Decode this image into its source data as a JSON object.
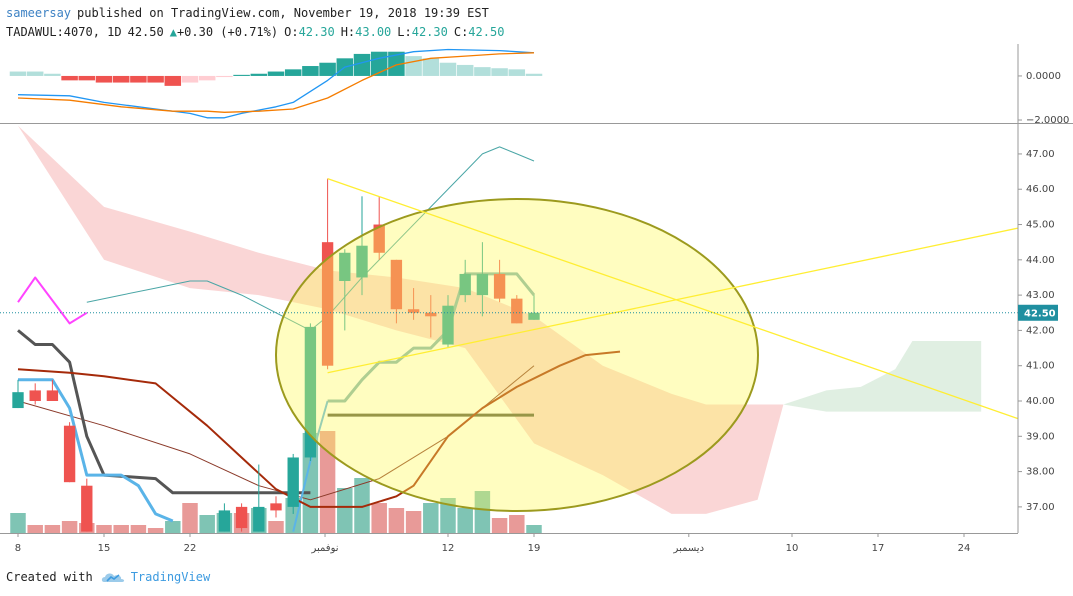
{
  "header": {
    "author": "sameersay",
    "published": "published on TradingView.com, November 19, 2018 19:39 EST",
    "symbol": "TADAWUL:4070, 1D",
    "price": "42.50",
    "arrow": "▲",
    "change": "+0.30 (+0.71%)",
    "ohlc": [
      {
        "key": "O:",
        "value": "42.30"
      },
      {
        "key": "H:",
        "value": "43.00"
      },
      {
        "key": "L:",
        "value": "42.30"
      },
      {
        "key": "C:",
        "value": "42.50"
      }
    ]
  },
  "footer": {
    "text": "Created with",
    "brand": "TradingView"
  },
  "chart_data": [
    {
      "type": "bar",
      "xlim": [
        -1.0465,
        58.14
      ],
      "ylim": [
        -2.09,
        1.45
      ],
      "yticks": [
        {
          "value": 0,
          "label": "0.0000"
        },
        {
          "value": -2,
          "label": "−2.0000"
        }
      ],
      "x": [
        0,
        1,
        2,
        3,
        4,
        5,
        6,
        7,
        8,
        9,
        10,
        11,
        12,
        13,
        14,
        15,
        16,
        17,
        18,
        19,
        20,
        21,
        22,
        23,
        24,
        25,
        26,
        27,
        28,
        29,
        30
      ],
      "values": [
        0.2,
        0.2,
        0.1,
        -0.2,
        -0.2,
        -0.3,
        -0.3,
        -0.3,
        -0.3,
        -0.45,
        -0.3,
        -0.2,
        -0.05,
        0.05,
        0.1,
        0.2,
        0.3,
        0.45,
        0.6,
        0.8,
        1.0,
        1.1,
        1.1,
        0.9,
        0.8,
        0.6,
        0.5,
        0.4,
        0.35,
        0.3,
        0.1
      ],
      "colors": [
        "#b2dfdb",
        "#b2dfdb",
        "#b2dfdb",
        "#ef5350",
        "#ef5350",
        "#ef5350",
        "#ef5350",
        "#ef5350",
        "#ef5350",
        "#ef5350",
        "#ffcdd2",
        "#ffcdd2",
        "#ffcdd2",
        "#26a69a",
        "#26a69a",
        "#26a69a",
        "#26a69a",
        "#26a69a",
        "#26a69a",
        "#26a69a",
        "#26a69a",
        "#26a69a",
        "#26a69a",
        "#b2dfdb",
        "#b2dfdb",
        "#b2dfdb",
        "#b2dfdb",
        "#b2dfdb",
        "#b2dfdb",
        "#b2dfdb",
        "#b2dfdb"
      ],
      "lines": [
        {
          "color": "#2196f3",
          "x": [
            0,
            3,
            5,
            8,
            10,
            11,
            12,
            13,
            15,
            16,
            17,
            18,
            19,
            21,
            23,
            25,
            28,
            30
          ],
          "values": [
            -0.85,
            -0.9,
            -1.2,
            -1.5,
            -1.7,
            -1.9,
            -1.9,
            -1.7,
            -1.4,
            -1.2,
            -0.7,
            -0.2,
            0.4,
            0.8,
            1.1,
            1.2,
            1.15,
            1.05
          ]
        },
        {
          "color": "#f57c00",
          "x": [
            0,
            3,
            6,
            9,
            11,
            12,
            14,
            16,
            18,
            20,
            22,
            24,
            26,
            28,
            30
          ],
          "values": [
            -1.0,
            -1.1,
            -1.4,
            -1.6,
            -1.6,
            -1.65,
            -1.6,
            -1.5,
            -1.0,
            -0.2,
            0.5,
            0.8,
            0.9,
            1.0,
            1.05
          ]
        }
      ]
    },
    {
      "type": "candlestick",
      "xlim": [
        -1.0465,
        58.14
      ],
      "ylim": [
        36.26,
        47.82
      ],
      "yticks": [
        {
          "value": 37,
          "label": "37.00"
        },
        {
          "value": 38,
          "label": "38.00"
        },
        {
          "value": 39,
          "label": "39.00"
        },
        {
          "value": 40,
          "label": "40.00"
        },
        {
          "value": 41,
          "label": "41.00"
        },
        {
          "value": 42,
          "label": "42.00"
        },
        {
          "value": 43,
          "label": "43.00"
        },
        {
          "value": 44,
          "label": "44.00"
        },
        {
          "value": 45,
          "label": "45.00"
        },
        {
          "value": 46,
          "label": "46.00"
        },
        {
          "value": 47,
          "label": "47.00"
        }
      ],
      "xticks": [
        {
          "value": 0,
          "label": "8"
        },
        {
          "value": 5,
          "label": "15"
        },
        {
          "value": 10,
          "label": "22"
        },
        {
          "value": 17.85,
          "label": "نوفمبر"
        },
        {
          "value": 25,
          "label": "12"
        },
        {
          "value": 30,
          "label": "19"
        },
        {
          "value": 39,
          "label": "ديسمبر"
        },
        {
          "value": 45,
          "label": "10"
        },
        {
          "value": 50,
          "label": "17"
        },
        {
          "value": 55,
          "label": "24"
        }
      ],
      "up_color": "#26a69a",
      "down_color": "#ef5350",
      "x": [
        0,
        1,
        2,
        3,
        4,
        12,
        13,
        14,
        15,
        16,
        17,
        18,
        19,
        20,
        21,
        22,
        23,
        24,
        25,
        26,
        27,
        28,
        29,
        30
      ],
      "open": [
        39.8,
        40.3,
        40.3,
        39.3,
        37.6,
        36.3,
        37.0,
        36.3,
        37.1,
        37.0,
        38.4,
        44.5,
        43.4,
        43.5,
        45.0,
        44.0,
        42.6,
        42.5,
        41.6,
        43.0,
        43.0,
        43.6,
        42.9,
        42.3
      ],
      "high": [
        40.6,
        40.5,
        40.6,
        39.4,
        37.8,
        37.1,
        37.1,
        38.2,
        37.3,
        38.5,
        42.2,
        46.3,
        44.3,
        45.8,
        45.8,
        44.0,
        43.2,
        43.0,
        43.0,
        44.0,
        44.5,
        44.0,
        43.0,
        43.0
      ],
      "low": [
        39.8,
        39.9,
        40.0,
        37.7,
        36.3,
        36.3,
        36.3,
        36.3,
        36.7,
        36.8,
        38.3,
        40.9,
        42.0,
        43.0,
        44.0,
        42.2,
        42.3,
        41.8,
        41.5,
        42.8,
        42.4,
        42.8,
        42.2,
        42.3
      ],
      "close": [
        40.25,
        40.0,
        40.0,
        37.7,
        36.3,
        36.9,
        36.4,
        37.0,
        36.9,
        38.4,
        42.1,
        41.0,
        44.2,
        44.4,
        44.2,
        42.6,
        42.5,
        42.4,
        42.7,
        43.6,
        43.6,
        42.9,
        42.2,
        42.5
      ],
      "last_price": {
        "value": 42.5,
        "label": "42.50"
      },
      "volume": {
        "vlim": [
          0,
          408
        ],
        "x": [
          0,
          1,
          2,
          3,
          4,
          5,
          6,
          7,
          8,
          9,
          10,
          11,
          12,
          13,
          14,
          15,
          16,
          17,
          18,
          19,
          20,
          21,
          22,
          23,
          24,
          25,
          26,
          27,
          28,
          29,
          30
        ],
        "values": [
          20,
          8,
          8,
          12,
          10,
          8,
          8,
          8,
          5,
          12,
          30,
          18,
          20,
          20,
          25,
          12,
          35,
          100,
          102,
          45,
          55,
          30,
          25,
          22,
          30,
          35,
          25,
          42,
          15,
          18,
          8
        ],
        "colors": [
          "#7fc4b4",
          "#e89a98",
          "#e89a98",
          "#e89a98",
          "#e89a98",
          "#e89a98",
          "#e89a98",
          "#e89a98",
          "#e89a98",
          "#7fc4b4",
          "#e89a98",
          "#7fc4b4",
          "#7fc4b4",
          "#e89a98",
          "#7fc4b4",
          "#e89a98",
          "#7fc4b4",
          "#7fc4b4",
          "#e89a98",
          "#7fc4b4",
          "#7fc4b4",
          "#e89a98",
          "#e89a98",
          "#e89a98",
          "#7fc4b4",
          "#7fc4b4",
          "#7fc4b4",
          "#7fc4b4",
          "#e89a98",
          "#e89a98",
          "#7fc4b4"
        ]
      },
      "clouds": [
        {
          "color": "#f8c8c8",
          "x": [
            0,
            5,
            10,
            14,
            18,
            22,
            26,
            30,
            34,
            38,
            40,
            43,
            44.5
          ],
          "upper": [
            47.8,
            45.5,
            44.8,
            44.2,
            43.7,
            43.5,
            43.2,
            42.4,
            41.0,
            40.2,
            39.9,
            39.9,
            39.9
          ],
          "lower": [
            47.8,
            44.0,
            43.2,
            43.0,
            42.6,
            42.0,
            41.5,
            38.8,
            37.9,
            36.8,
            36.8,
            37.2,
            39.9
          ]
        },
        {
          "color": "#d5ead8",
          "x": [
            44.5,
            47,
            49,
            51,
            52,
            56
          ],
          "upper": [
            39.9,
            40.3,
            40.4,
            40.9,
            41.7,
            41.7
          ],
          "lower": [
            39.9,
            39.7,
            39.7,
            39.7,
            39.7,
            39.7
          ]
        }
      ],
      "lines": [
        {
          "color": "#4aa6a6",
          "width": 1,
          "x": [
            4,
            6,
            8,
            10,
            11,
            13,
            15,
            17,
            18,
            20,
            22,
            24,
            26,
            27,
            28,
            29,
            30
          ],
          "values": [
            42.8,
            43.0,
            43.2,
            43.4,
            43.4,
            43.0,
            42.5,
            42.0,
            42.4,
            43.5,
            44.5,
            45.5,
            46.5,
            47.0,
            47.2,
            47.0,
            46.8
          ]
        },
        {
          "color": "#8b3a2a",
          "width": 1,
          "x": [
            0,
            5,
            10,
            14,
            17,
            21,
            25,
            30
          ],
          "values": [
            40.0,
            39.3,
            38.5,
            37.6,
            37.2,
            37.8,
            39.0,
            41.0
          ]
        },
        {
          "color": "#555555",
          "width": 3,
          "x": [
            0,
            1,
            2,
            3,
            4,
            5,
            8,
            9,
            10,
            16,
            17
          ],
          "values": [
            42.0,
            41.6,
            41.6,
            41.1,
            39.0,
            37.9,
            37.8,
            37.4,
            37.4,
            37.4,
            37.4
          ]
        },
        {
          "color": "#5a5a3c",
          "width": 3,
          "x": [
            18,
            30
          ],
          "values": [
            39.6,
            39.6
          ]
        },
        {
          "color": "#5ab4e8",
          "width": 3,
          "x": [
            0,
            2,
            3,
            4,
            6,
            7,
            8,
            9
          ],
          "values": [
            40.6,
            40.6,
            39.8,
            37.9,
            37.9,
            37.6,
            36.8,
            36.6
          ]
        },
        {
          "color": "#5ab4e8",
          "width": 2,
          "x": [
            16,
            17,
            18
          ],
          "values": [
            36.3,
            38.3,
            40.0
          ]
        },
        {
          "color": "#7fb3b3",
          "width": 3,
          "x": [
            18,
            19,
            20,
            21,
            22,
            23,
            24,
            25,
            26,
            27,
            28,
            29,
            30
          ],
          "values": [
            40.0,
            40.0,
            40.6,
            41.1,
            41.1,
            41.5,
            41.5,
            42.0,
            43.6,
            43.6,
            43.6,
            43.6,
            43.0
          ]
        },
        {
          "color": "#a52a0a",
          "width": 2,
          "x": [
            0,
            3,
            5,
            8,
            9,
            11,
            13,
            15,
            17,
            20,
            22,
            23,
            25,
            27,
            29,
            31.5,
            33,
            35
          ],
          "values": [
            40.9,
            40.8,
            40.7,
            40.5,
            40.1,
            39.3,
            38.4,
            37.5,
            37.0,
            37.0,
            37.3,
            37.6,
            39.0,
            39.8,
            40.4,
            41.0,
            41.3,
            41.4
          ]
        },
        {
          "color": "#ff44ff",
          "width": 2,
          "x": [
            0,
            1,
            3,
            4
          ],
          "values": [
            42.8,
            43.5,
            42.2,
            42.5
          ]
        }
      ],
      "trendlines": [
        {
          "color": "#ffee33",
          "x": [
            18,
            58.14
          ],
          "values": [
            46.3,
            39.5
          ]
        },
        {
          "color": "#ffee33",
          "x": [
            18,
            58.14
          ],
          "values": [
            40.8,
            44.9
          ]
        }
      ]
    }
  ]
}
